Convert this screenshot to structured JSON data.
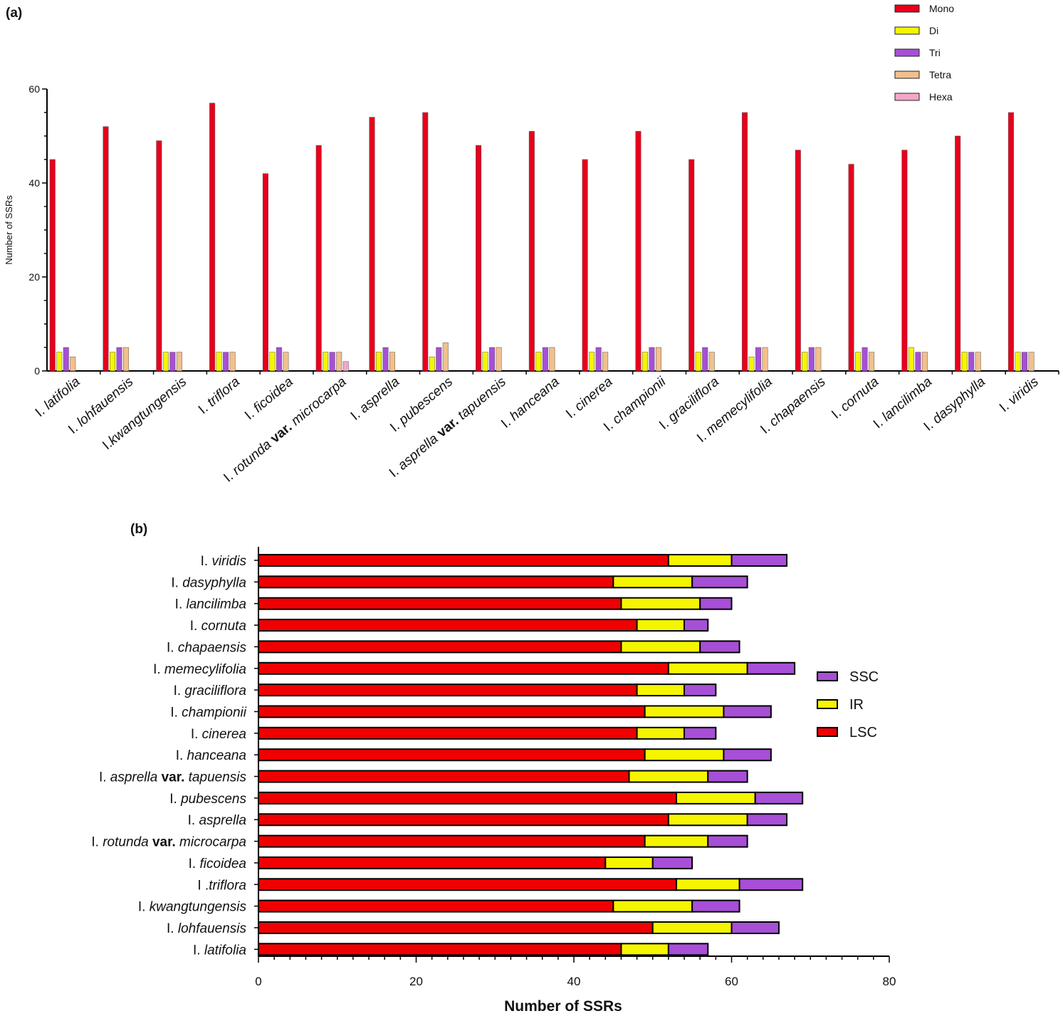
{
  "panel_labels": {
    "a": "(a)",
    "b": "(b)"
  },
  "colors": {
    "mono": "#e8001c",
    "di": "#f5f500",
    "tri": "#a74fd6",
    "tetra": "#f2c08c",
    "hexa": "#f5a6c8",
    "lsc": "#f00000",
    "ir": "#f5f500",
    "ssc": "#a74fd6",
    "axis": "#000000"
  },
  "chart_data": [
    {
      "type": "bar",
      "title": "(a)",
      "xlabel": "",
      "ylabel": "Number of SSRs",
      "ylim": [
        0,
        60
      ],
      "yticks": [
        0,
        20,
        40,
        60
      ],
      "grid": false,
      "legend_position": "top-right",
      "categories": [
        {
          "pre": "I. ",
          "it": "latifolia",
          "mid": "",
          "it2": ""
        },
        {
          "pre": "I. ",
          "it": "lohfauensis",
          "mid": "",
          "it2": ""
        },
        {
          "pre": "I.",
          "it": "kwangtungensis",
          "mid": "",
          "it2": ""
        },
        {
          "pre": "I. ",
          "it": "triflora",
          "mid": "",
          "it2": ""
        },
        {
          "pre": "I. ",
          "it": "ficoidea",
          "mid": "",
          "it2": ""
        },
        {
          "pre": "I. ",
          "it": "rotunda",
          "mid": " var. ",
          "it2": "microcarpa"
        },
        {
          "pre": "I. ",
          "it": "asprella",
          "mid": "",
          "it2": ""
        },
        {
          "pre": "I. ",
          "it": "pubescens",
          "mid": "",
          "it2": ""
        },
        {
          "pre": "I. ",
          "it": "asprella",
          "mid": " var. ",
          "it2": "tapuensis"
        },
        {
          "pre": "I. ",
          "it": "hanceana",
          "mid": "",
          "it2": ""
        },
        {
          "pre": "I. ",
          "it": "cinerea",
          "mid": "",
          "it2": ""
        },
        {
          "pre": "I. ",
          "it": "championii",
          "mid": "",
          "it2": ""
        },
        {
          "pre": "I. ",
          "it": "graciliflora",
          "mid": "",
          "it2": ""
        },
        {
          "pre": "I. ",
          "it": "memecylifolia",
          "mid": "",
          "it2": ""
        },
        {
          "pre": "I. ",
          "it": "chapaensis",
          "mid": "",
          "it2": ""
        },
        {
          "pre": "I. ",
          "it": "cornuta",
          "mid": "",
          "it2": ""
        },
        {
          "pre": "I. ",
          "it": "lancilimba",
          "mid": "",
          "it2": ""
        },
        {
          "pre": "I. ",
          "it": "dasyphylla",
          "mid": "",
          "it2": ""
        },
        {
          "pre": "I. ",
          "it": "viridis",
          "mid": "",
          "it2": ""
        }
      ],
      "series": [
        {
          "name": "Mono",
          "key": "mono",
          "values": [
            45,
            52,
            49,
            57,
            42,
            48,
            54,
            55,
            48,
            51,
            45,
            51,
            45,
            55,
            47,
            44,
            47,
            50,
            55
          ]
        },
        {
          "name": "Di",
          "key": "di",
          "values": [
            4,
            4,
            4,
            4,
            4,
            4,
            4,
            3,
            4,
            4,
            4,
            4,
            4,
            3,
            4,
            4,
            5,
            4,
            4
          ]
        },
        {
          "name": "Tri",
          "key": "tri",
          "values": [
            5,
            5,
            4,
            4,
            5,
            4,
            5,
            5,
            5,
            5,
            5,
            5,
            5,
            5,
            5,
            5,
            4,
            4,
            4
          ]
        },
        {
          "name": "Tetra",
          "key": "tetra",
          "values": [
            3,
            5,
            4,
            4,
            4,
            4,
            4,
            6,
            5,
            5,
            4,
            5,
            4,
            5,
            5,
            4,
            4,
            4,
            4
          ]
        },
        {
          "name": "Hexa",
          "key": "hexa",
          "values": [
            0,
            0,
            0,
            0,
            0,
            2,
            0,
            0,
            0,
            0,
            0,
            0,
            0,
            0,
            0,
            0,
            0,
            0,
            0
          ]
        }
      ]
    },
    {
      "type": "bar",
      "orientation": "horizontal",
      "stacked": true,
      "title": "(b)",
      "xlabel": "Number of SSRs",
      "ylabel": "",
      "xlim": [
        0,
        80
      ],
      "xticks": [
        0,
        20,
        40,
        60,
        80
      ],
      "grid": false,
      "legend_position": "right",
      "categories": [
        {
          "pre": "I. ",
          "it": "viridis",
          "mid": "",
          "it2": ""
        },
        {
          "pre": "I. ",
          "it": "dasyphylla",
          "mid": "",
          "it2": ""
        },
        {
          "pre": "I. ",
          "it": "lancilimba",
          "mid": "",
          "it2": ""
        },
        {
          "pre": "I. ",
          "it": "cornuta",
          "mid": "",
          "it2": ""
        },
        {
          "pre": "I. ",
          "it": "chapaensis",
          "mid": "",
          "it2": ""
        },
        {
          "pre": "I. ",
          "it": "memecylifolia",
          "mid": "",
          "it2": ""
        },
        {
          "pre": "I. ",
          "it": "graciliflora",
          "mid": "",
          "it2": ""
        },
        {
          "pre": "I. ",
          "it": "championii",
          "mid": "",
          "it2": ""
        },
        {
          "pre": "I. ",
          "it": "cinerea",
          "mid": "",
          "it2": ""
        },
        {
          "pre": "I. ",
          "it": "hanceana",
          "mid": "",
          "it2": ""
        },
        {
          "pre": "I. ",
          "it": "asprella",
          "mid": " var. ",
          "it2": "tapuensis"
        },
        {
          "pre": "I. ",
          "it": "pubescens",
          "mid": "",
          "it2": ""
        },
        {
          "pre": "I. ",
          "it": "asprella",
          "mid": "",
          "it2": ""
        },
        {
          "pre": "I. ",
          "it": "rotunda",
          "mid": " var. ",
          "it2": "microcarpa"
        },
        {
          "pre": "I. ",
          "it": "ficoidea",
          "mid": "",
          "it2": ""
        },
        {
          "pre": "I .",
          "it": "triflora",
          "mid": "",
          "it2": ""
        },
        {
          "pre": "I. ",
          "it": "kwangtungensis",
          "mid": "",
          "it2": ""
        },
        {
          "pre": "I. ",
          "it": "lohfauensis",
          "mid": "",
          "it2": ""
        },
        {
          "pre": "I. ",
          "it": "latifolia",
          "mid": "",
          "it2": ""
        }
      ],
      "series": [
        {
          "name": "LSC",
          "key": "lsc",
          "values": [
            52,
            45,
            46,
            48,
            46,
            52,
            48,
            49,
            48,
            49,
            47,
            53,
            52,
            49,
            44,
            53,
            45,
            50,
            46
          ]
        },
        {
          "name": "IR",
          "key": "ir",
          "values": [
            8,
            10,
            10,
            6,
            10,
            10,
            6,
            10,
            6,
            10,
            10,
            10,
            10,
            8,
            6,
            8,
            10,
            10,
            6
          ]
        },
        {
          "name": "SSC",
          "key": "ssc",
          "values": [
            7,
            7,
            4,
            3,
            5,
            6,
            4,
            6,
            4,
            6,
            5,
            6,
            5,
            5,
            5,
            8,
            6,
            6,
            5
          ]
        }
      ],
      "legend_order": [
        "SSC",
        "IR",
        "LSC"
      ]
    }
  ]
}
